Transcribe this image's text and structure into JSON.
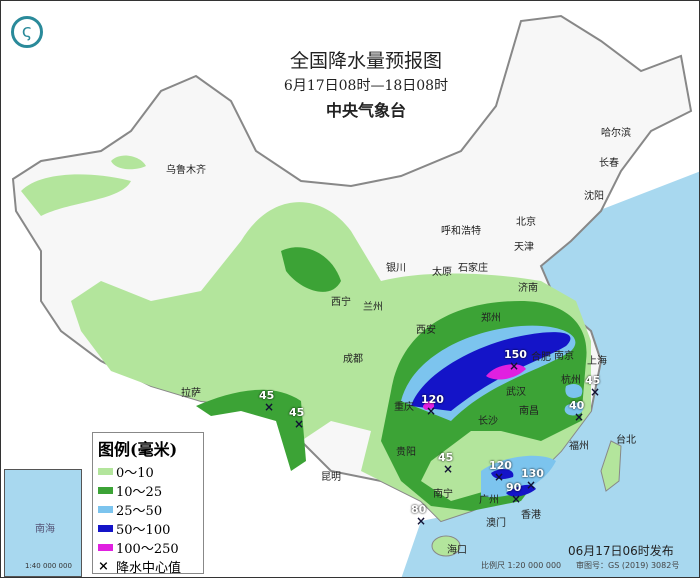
{
  "header": {
    "title": "全国降水量预报图",
    "period": "6月17日08时—18日08时",
    "issuer": "中央气象台"
  },
  "colors": {
    "sea": "#a8d8ef",
    "land": "#f7f7f7",
    "light_green": "#b3e59c",
    "dark_green": "#3ca336",
    "light_blue": "#7cc4ee",
    "blue": "#1414c8",
    "magenta": "#e020e0"
  },
  "legend": {
    "title": "图例(毫米)",
    "items": [
      {
        "label": "0～10",
        "color": "#b3e59c"
      },
      {
        "label": "10～25",
        "color": "#3ca336"
      },
      {
        "label": "25～50",
        "color": "#7cc4ee"
      },
      {
        "label": "50～100",
        "color": "#1414c8"
      },
      {
        "label": "100～250",
        "color": "#e020e0"
      }
    ],
    "center_label": "降水中心值",
    "center_icon": "x-mark-icon"
  },
  "cities": [
    {
      "n": "乌鲁木齐"
    },
    {
      "n": "哈尔滨"
    },
    {
      "n": "长春"
    },
    {
      "n": "沈阳"
    },
    {
      "n": "北京"
    },
    {
      "n": "天津"
    },
    {
      "n": "呼和浩特"
    },
    {
      "n": "石家庄"
    },
    {
      "n": "太原"
    },
    {
      "n": "济南"
    },
    {
      "n": "银川"
    },
    {
      "n": "西宁"
    },
    {
      "n": "兰州"
    },
    {
      "n": "西安"
    },
    {
      "n": "郑州"
    },
    {
      "n": "合肥"
    },
    {
      "n": "南京"
    },
    {
      "n": "上海"
    },
    {
      "n": "杭州"
    },
    {
      "n": "武汉"
    },
    {
      "n": "长沙"
    },
    {
      "n": "南昌"
    },
    {
      "n": "福州"
    },
    {
      "n": "台北"
    },
    {
      "n": "成都"
    },
    {
      "n": "重庆"
    },
    {
      "n": "贵阳"
    },
    {
      "n": "昆明"
    },
    {
      "n": "拉萨"
    },
    {
      "n": "南宁"
    },
    {
      "n": "广州"
    },
    {
      "n": "香港"
    },
    {
      "n": "澳门"
    },
    {
      "n": "海口"
    }
  ],
  "rain_centers": [
    "150",
    "120",
    "45",
    "40",
    "45",
    "120",
    "90",
    "130",
    "80",
    "45",
    "45"
  ],
  "footer": {
    "published": "06月17日06时发布",
    "scale": "比例尺 1:20 000 000",
    "review_no": "审图号：GS (2019) 3082号"
  },
  "inset": {
    "sea_label": "南海",
    "scale": "1:40 000 000"
  }
}
